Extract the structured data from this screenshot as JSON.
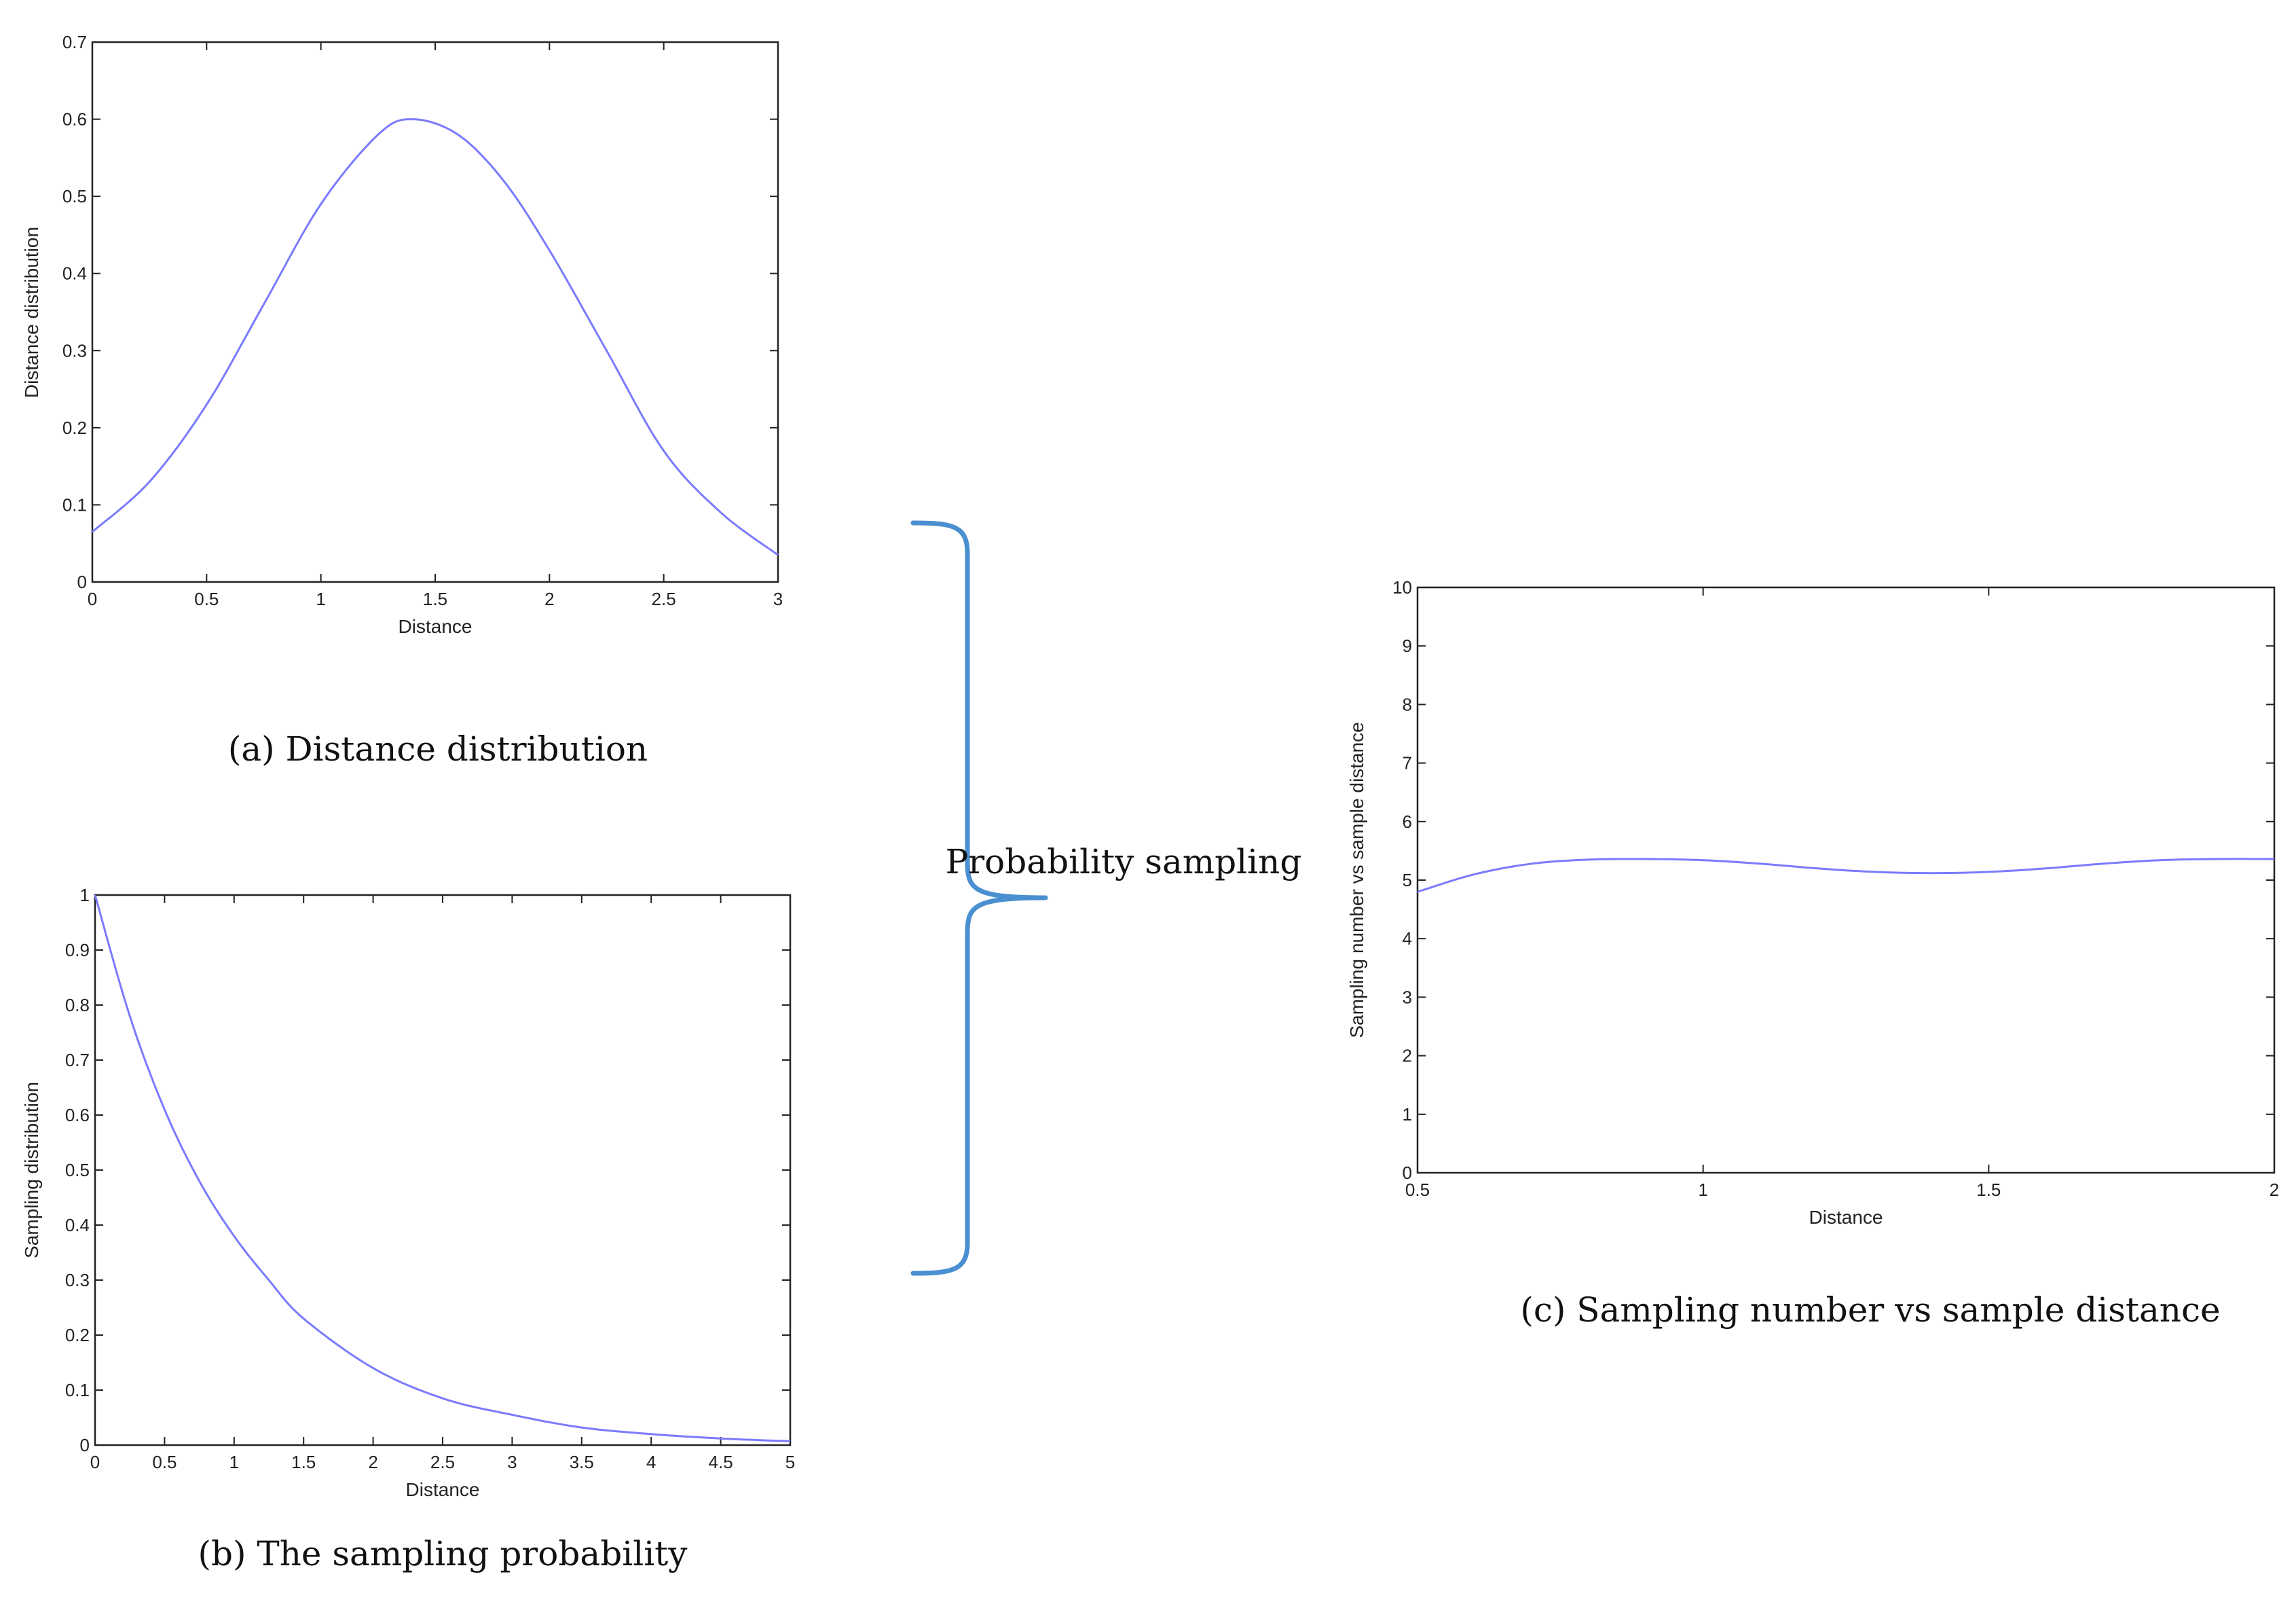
{
  "colors": {
    "series": "#7b7bff",
    "brace": "#4a8fd0",
    "axes": "#222222"
  },
  "annotation": {
    "brace_label": "Probability sampling"
  },
  "chart_data": [
    {
      "id": "a",
      "type": "line",
      "caption": "(a) Distance distribution",
      "xlabel": "Distance",
      "ylabel": "Distance distribution",
      "xlim": [
        0,
        3
      ],
      "ylim": [
        0,
        0.7
      ],
      "xticks": [
        "0",
        "0.5",
        "1",
        "1.5",
        "2",
        "2.5",
        "3"
      ],
      "yticks": [
        "0",
        "0.1",
        "0.2",
        "0.3",
        "0.4",
        "0.5",
        "0.6",
        "0.7"
      ],
      "grid": false,
      "series": [
        {
          "x": [
            0,
            0.25,
            0.5,
            0.75,
            1.0,
            1.25,
            1.4,
            1.6,
            1.8,
            2.0,
            2.25,
            2.5,
            2.75,
            3.0
          ],
          "values": [
            0.065,
            0.13,
            0.23,
            0.36,
            0.49,
            0.58,
            0.6,
            0.58,
            0.52,
            0.43,
            0.3,
            0.17,
            0.09,
            0.035
          ]
        }
      ]
    },
    {
      "id": "b",
      "type": "line",
      "caption": "(b) The sampling probability",
      "xlabel": "Distance",
      "ylabel": "Sampling distribution",
      "xlim": [
        0,
        5
      ],
      "ylim": [
        0,
        1
      ],
      "xticks": [
        "0",
        "0.5",
        "1",
        "1.5",
        "2",
        "2.5",
        "3",
        "3.5",
        "4",
        "4.5",
        "5"
      ],
      "yticks": [
        "0",
        "0.1",
        "0.2",
        "0.3",
        "0.4",
        "0.5",
        "0.6",
        "0.7",
        "0.8",
        "0.9",
        "1"
      ],
      "grid": false,
      "series": [
        {
          "x": [
            0,
            0.25,
            0.5,
            0.75,
            1.0,
            1.25,
            1.5,
            2.0,
            2.5,
            3.0,
            3.5,
            4.0,
            4.5,
            5.0
          ],
          "values": [
            1.0,
            0.78,
            0.61,
            0.48,
            0.38,
            0.3,
            0.23,
            0.14,
            0.085,
            0.055,
            0.032,
            0.02,
            0.012,
            0.007
          ]
        }
      ]
    },
    {
      "id": "c",
      "type": "line",
      "caption": "(c) Sampling number vs sample distance",
      "xlabel": "Distance",
      "ylabel": "Sampling number vs sample distance",
      "xlim": [
        0.5,
        2
      ],
      "ylim": [
        0,
        10
      ],
      "xticks": [
        "0.5",
        "1",
        "1.5",
        "2"
      ],
      "yticks": [
        "0",
        "1",
        "2",
        "3",
        "4",
        "5",
        "6",
        "7",
        "8",
        "9",
        "10"
      ],
      "grid": false,
      "series": [
        {
          "x": [
            0.5,
            0.6,
            0.7,
            0.8,
            0.9,
            1.0,
            1.1,
            1.2,
            1.3,
            1.4,
            1.5,
            1.6,
            1.7,
            1.8,
            1.9,
            2.0
          ],
          "values": [
            4.8,
            5.1,
            5.28,
            5.35,
            5.36,
            5.34,
            5.28,
            5.2,
            5.14,
            5.12,
            5.14,
            5.2,
            5.28,
            5.34,
            5.36,
            5.36
          ]
        }
      ]
    }
  ]
}
